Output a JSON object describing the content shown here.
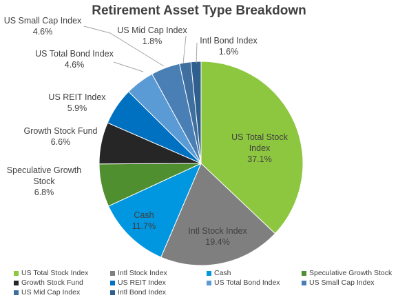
{
  "chart_data": {
    "type": "pie",
    "title": "Retirement Asset Type Breakdown",
    "legend_position": "bottom",
    "slices": [
      {
        "label": "US Total Stock Index",
        "value": 37.1,
        "value_label": "37.1%",
        "color": "#8dc63f",
        "label_lines": [
          "US Total Stock",
          "Index",
          "37.1%"
        ]
      },
      {
        "label": "Intl Stock Index",
        "value": 19.4,
        "value_label": "19.4%",
        "color": "#7f7f7f",
        "label_lines": [
          "Intl Stock Index",
          "19.4%"
        ]
      },
      {
        "label": "Cash",
        "value": 11.7,
        "value_label": "11.7%",
        "color": "#0096e0",
        "label_lines": [
          "Cash",
          "11.7%"
        ]
      },
      {
        "label": "Speculative Growth Stock",
        "value": 6.8,
        "value_label": "6.8%",
        "color": "#4f8f2f",
        "label_lines": [
          "Speculative Growth",
          "Stock",
          "6.8%"
        ]
      },
      {
        "label": "Growth Stock Fund",
        "value": 6.6,
        "value_label": "6.6%",
        "color": "#262626",
        "label_lines": [
          "Growth Stock Fund",
          "6.6%"
        ]
      },
      {
        "label": "US REIT Index",
        "value": 5.9,
        "value_label": "5.9%",
        "color": "#0070c0",
        "label_lines": [
          "US REIT Index",
          "5.9%"
        ]
      },
      {
        "label": "US Total Bond Index",
        "value": 4.6,
        "value_label": "4.6%",
        "color": "#5b9bd5",
        "label_lines": [
          "US Total Bond Index",
          "4.6%"
        ]
      },
      {
        "label": "US Small Cap Index",
        "value": 4.6,
        "value_label": "4.6%",
        "color": "#4a7fb5",
        "label_lines": [
          "US Small Cap Index",
          "4.6%"
        ]
      },
      {
        "label": "US Mid Cap Index",
        "value": 1.8,
        "value_label": "1.8%",
        "color": "#3f6f9f",
        "label_lines": [
          "US Mid Cap Index",
          "1.8%"
        ]
      },
      {
        "label": "Intl Bond Index",
        "value": 1.6,
        "value_label": "1.6%",
        "color": "#2f5f8f",
        "label_lines": [
          "Intl Bond Index",
          "1.6%"
        ]
      }
    ]
  }
}
